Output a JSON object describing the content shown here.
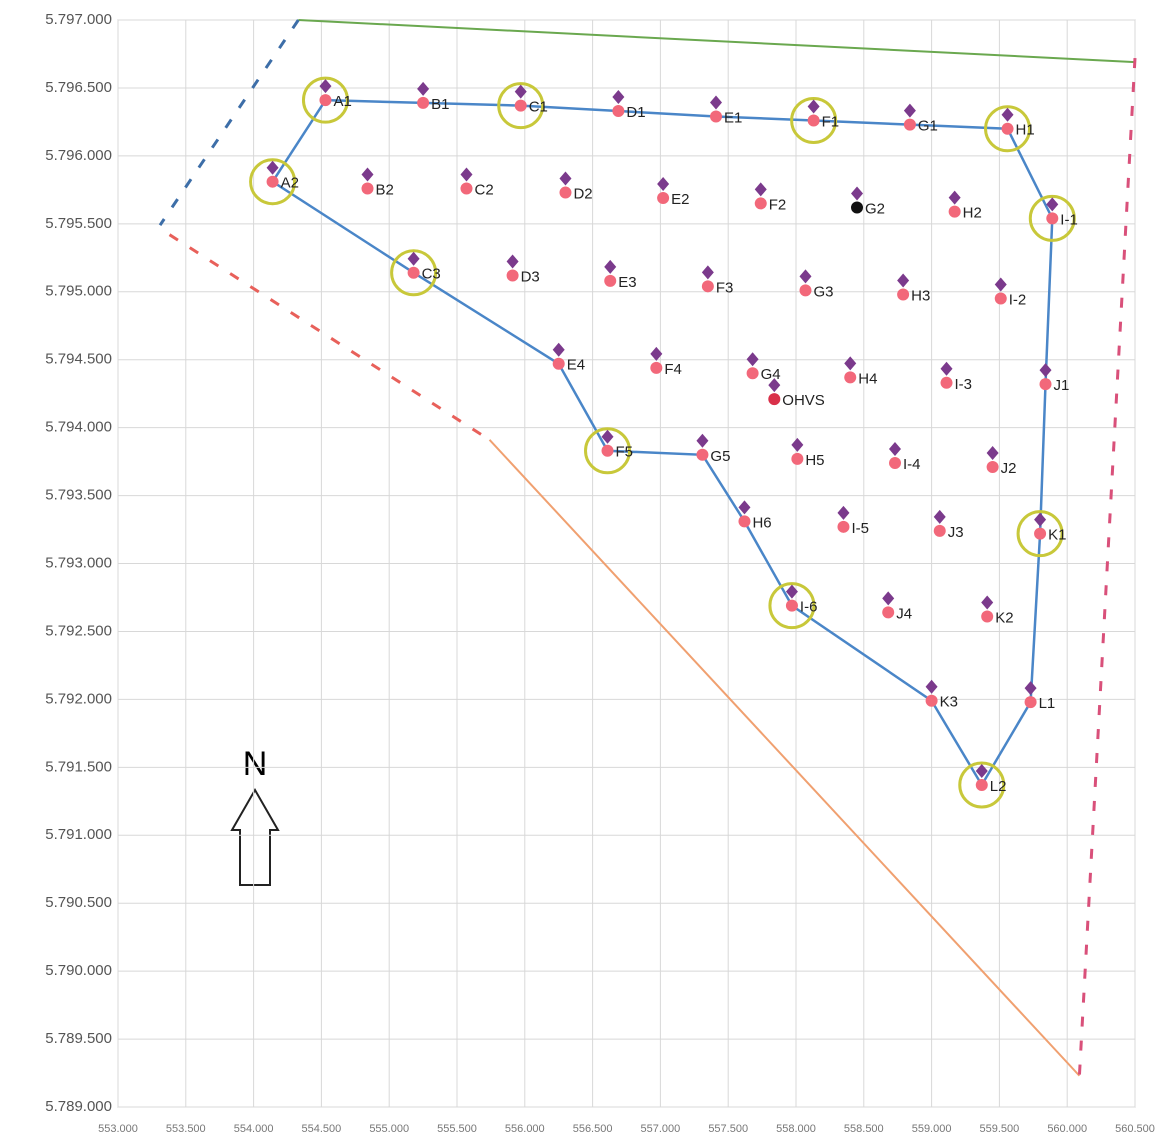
{
  "chart_data": {
    "type": "scatter",
    "color": "#f2687a",
    "label_color": "#222222",
    "grid": true,
    "xlim": [
      553000,
      560500
    ],
    "ylim": [
      5789000,
      5797000
    ],
    "xticks": [
      {
        "value": 553000,
        "label": "553.000"
      },
      {
        "value": 553500,
        "label": "553.500"
      },
      {
        "value": 554000,
        "label": "554.000"
      },
      {
        "value": 554500,
        "label": "554.500"
      },
      {
        "value": 555000,
        "label": "555.000"
      },
      {
        "value": 555500,
        "label": "555.500"
      },
      {
        "value": 556000,
        "label": "556.000"
      },
      {
        "value": 556500,
        "label": "556.500"
      },
      {
        "value": 557000,
        "label": "557.000"
      },
      {
        "value": 557500,
        "label": "557.500"
      },
      {
        "value": 558000,
        "label": "558.000"
      },
      {
        "value": 558500,
        "label": "558.500"
      },
      {
        "value": 559000,
        "label": "559.000"
      },
      {
        "value": 559500,
        "label": "559.500"
      },
      {
        "value": 560000,
        "label": "560.000"
      },
      {
        "value": 560500,
        "label": "560.500"
      }
    ],
    "yticks": [
      {
        "value": 5797000,
        "label": "5.797.000"
      },
      {
        "value": 5796500,
        "label": "5.796.500"
      },
      {
        "value": 5796000,
        "label": "5.796.000"
      },
      {
        "value": 5795500,
        "label": "5.795.500"
      },
      {
        "value": 5795000,
        "label": "5.795.000"
      },
      {
        "value": 5794500,
        "label": "5.794.500"
      },
      {
        "value": 5794000,
        "label": "5.794.000"
      },
      {
        "value": 5793500,
        "label": "5.793.500"
      },
      {
        "value": 5793000,
        "label": "5.793.000"
      },
      {
        "value": 5792500,
        "label": "5.792.500"
      },
      {
        "value": 5792000,
        "label": "5.792.000"
      },
      {
        "value": 5791500,
        "label": "5.791.500"
      },
      {
        "value": 5791000,
        "label": "5.791.000"
      },
      {
        "value": 5790500,
        "label": "5.790.500"
      },
      {
        "value": 5790000,
        "label": "5.790.000"
      },
      {
        "value": 5789500,
        "label": "5.789.500"
      },
      {
        "value": 5789000,
        "label": "5.789.000"
      }
    ],
    "north_label": "N",
    "points": [
      {
        "label": "A1",
        "x": 554530,
        "y": 5796410,
        "ring": true
      },
      {
        "label": "B1",
        "x": 555250,
        "y": 5796390
      },
      {
        "label": "C1",
        "x": 555970,
        "y": 5796370,
        "ring": true
      },
      {
        "label": "D1",
        "x": 556690,
        "y": 5796330
      },
      {
        "label": "E1",
        "x": 557410,
        "y": 5796290
      },
      {
        "label": "F1",
        "x": 558130,
        "y": 5796260,
        "ring": true
      },
      {
        "label": "G1",
        "x": 558840,
        "y": 5796230
      },
      {
        "label": "H1",
        "x": 559560,
        "y": 5796200,
        "ring": true
      },
      {
        "label": "A2",
        "x": 554140,
        "y": 5795810,
        "ring": true
      },
      {
        "label": "B2",
        "x": 554840,
        "y": 5795760
      },
      {
        "label": "C2",
        "x": 555570,
        "y": 5795760
      },
      {
        "label": "D2",
        "x": 556300,
        "y": 5795730
      },
      {
        "label": "E2",
        "x": 557020,
        "y": 5795690
      },
      {
        "label": "F2",
        "x": 557740,
        "y": 5795650
      },
      {
        "label": "G2",
        "x": 558450,
        "y": 5795620,
        "color": "#111111"
      },
      {
        "label": "H2",
        "x": 559170,
        "y": 5795590
      },
      {
        "label": "I-1",
        "x": 559890,
        "y": 5795540,
        "ring": true
      },
      {
        "label": "C3",
        "x": 555180,
        "y": 5795140,
        "ring": true
      },
      {
        "label": "D3",
        "x": 555910,
        "y": 5795120
      },
      {
        "label": "E3",
        "x": 556630,
        "y": 5795080
      },
      {
        "label": "F3",
        "x": 557350,
        "y": 5795040
      },
      {
        "label": "G3",
        "x": 558070,
        "y": 5795010
      },
      {
        "label": "H3",
        "x": 558790,
        "y": 5794980
      },
      {
        "label": "I-2",
        "x": 559510,
        "y": 5794950
      },
      {
        "label": "E4",
        "x": 556250,
        "y": 5794470
      },
      {
        "label": "F4",
        "x": 556970,
        "y": 5794440
      },
      {
        "label": "G4",
        "x": 557680,
        "y": 5794400
      },
      {
        "label": "H4",
        "x": 558400,
        "y": 5794370
      },
      {
        "label": "I-3",
        "x": 559110,
        "y": 5794330
      },
      {
        "label": "J1",
        "x": 559840,
        "y": 5794320
      },
      {
        "label": "OHVS",
        "x": 557840,
        "y": 5794210,
        "color": "#d9304a"
      },
      {
        "label": "F5",
        "x": 556610,
        "y": 5793830,
        "ring": true
      },
      {
        "label": "G5",
        "x": 557310,
        "y": 5793800
      },
      {
        "label": "H5",
        "x": 558010,
        "y": 5793770
      },
      {
        "label": "I-4",
        "x": 558730,
        "y": 5793740
      },
      {
        "label": "J2",
        "x": 559450,
        "y": 5793710
      },
      {
        "label": "H6",
        "x": 557620,
        "y": 5793310
      },
      {
        "label": "I-5",
        "x": 558350,
        "y": 5793270
      },
      {
        "label": "J3",
        "x": 559060,
        "y": 5793240
      },
      {
        "label": "K1",
        "x": 559800,
        "y": 5793220,
        "ring": true
      },
      {
        "label": "I-6",
        "x": 557970,
        "y": 5792690,
        "ring": true
      },
      {
        "label": "J4",
        "x": 558680,
        "y": 5792640
      },
      {
        "label": "K2",
        "x": 559410,
        "y": 5792610
      },
      {
        "label": "K3",
        "x": 559000,
        "y": 5791990
      },
      {
        "label": "L1",
        "x": 559730,
        "y": 5791980
      },
      {
        "label": "L2",
        "x": 559370,
        "y": 5791370,
        "ring": true
      }
    ],
    "route": {
      "color": "#4a86c8",
      "x": [
        554530,
        555250,
        555970,
        556690,
        557410,
        558130,
        558840,
        559560,
        559890,
        559840,
        559800,
        559730,
        559370,
        559000,
        557970,
        557620,
        557310,
        556610,
        556250,
        555180,
        554140,
        554530
      ],
      "y": [
        5796410,
        5796390,
        5796370,
        5796330,
        5796290,
        5796260,
        5796230,
        5796200,
        5795540,
        5794320,
        5793220,
        5791980,
        5791370,
        5791990,
        5792690,
        5793310,
        5793800,
        5793830,
        5794470,
        5795140,
        5795810,
        5796410
      ]
    },
    "lines": [
      {
        "color": "#6aa84f",
        "dash": false,
        "x": [
          554330,
          560500
        ],
        "y": [
          5797000,
          5796690
        ]
      },
      {
        "color": "#3d6ea8",
        "dash": true,
        "x": [
          554330,
          553310
        ],
        "y": [
          5797000,
          5795490
        ]
      },
      {
        "color": "#e8605a",
        "dash": true,
        "x": [
          553380,
          555740
        ],
        "y": [
          5795420,
          5793910
        ]
      },
      {
        "color": "#f0a070",
        "dash": false,
        "x": [
          555740,
          560090
        ],
        "y": [
          5793910,
          5789230
        ]
      },
      {
        "color": "#d9507a",
        "dash": true,
        "x": [
          560500,
          560090
        ],
        "y": [
          5796720,
          5789230
        ]
      }
    ]
  }
}
